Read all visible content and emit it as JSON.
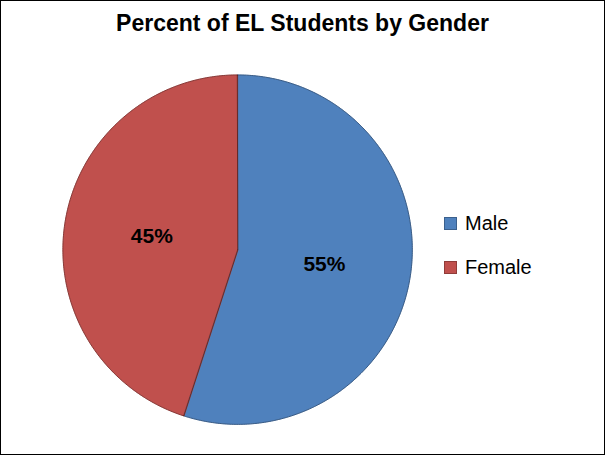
{
  "chart_data": {
    "type": "pie",
    "title": "Percent of EL Students by Gender",
    "categories": [
      "Male",
      "Female"
    ],
    "values": [
      55,
      45
    ],
    "value_labels": [
      "55%",
      "45%"
    ],
    "colors": [
      "#4f81bd",
      "#c0504d"
    ],
    "data_labels": true,
    "legend": "right"
  }
}
